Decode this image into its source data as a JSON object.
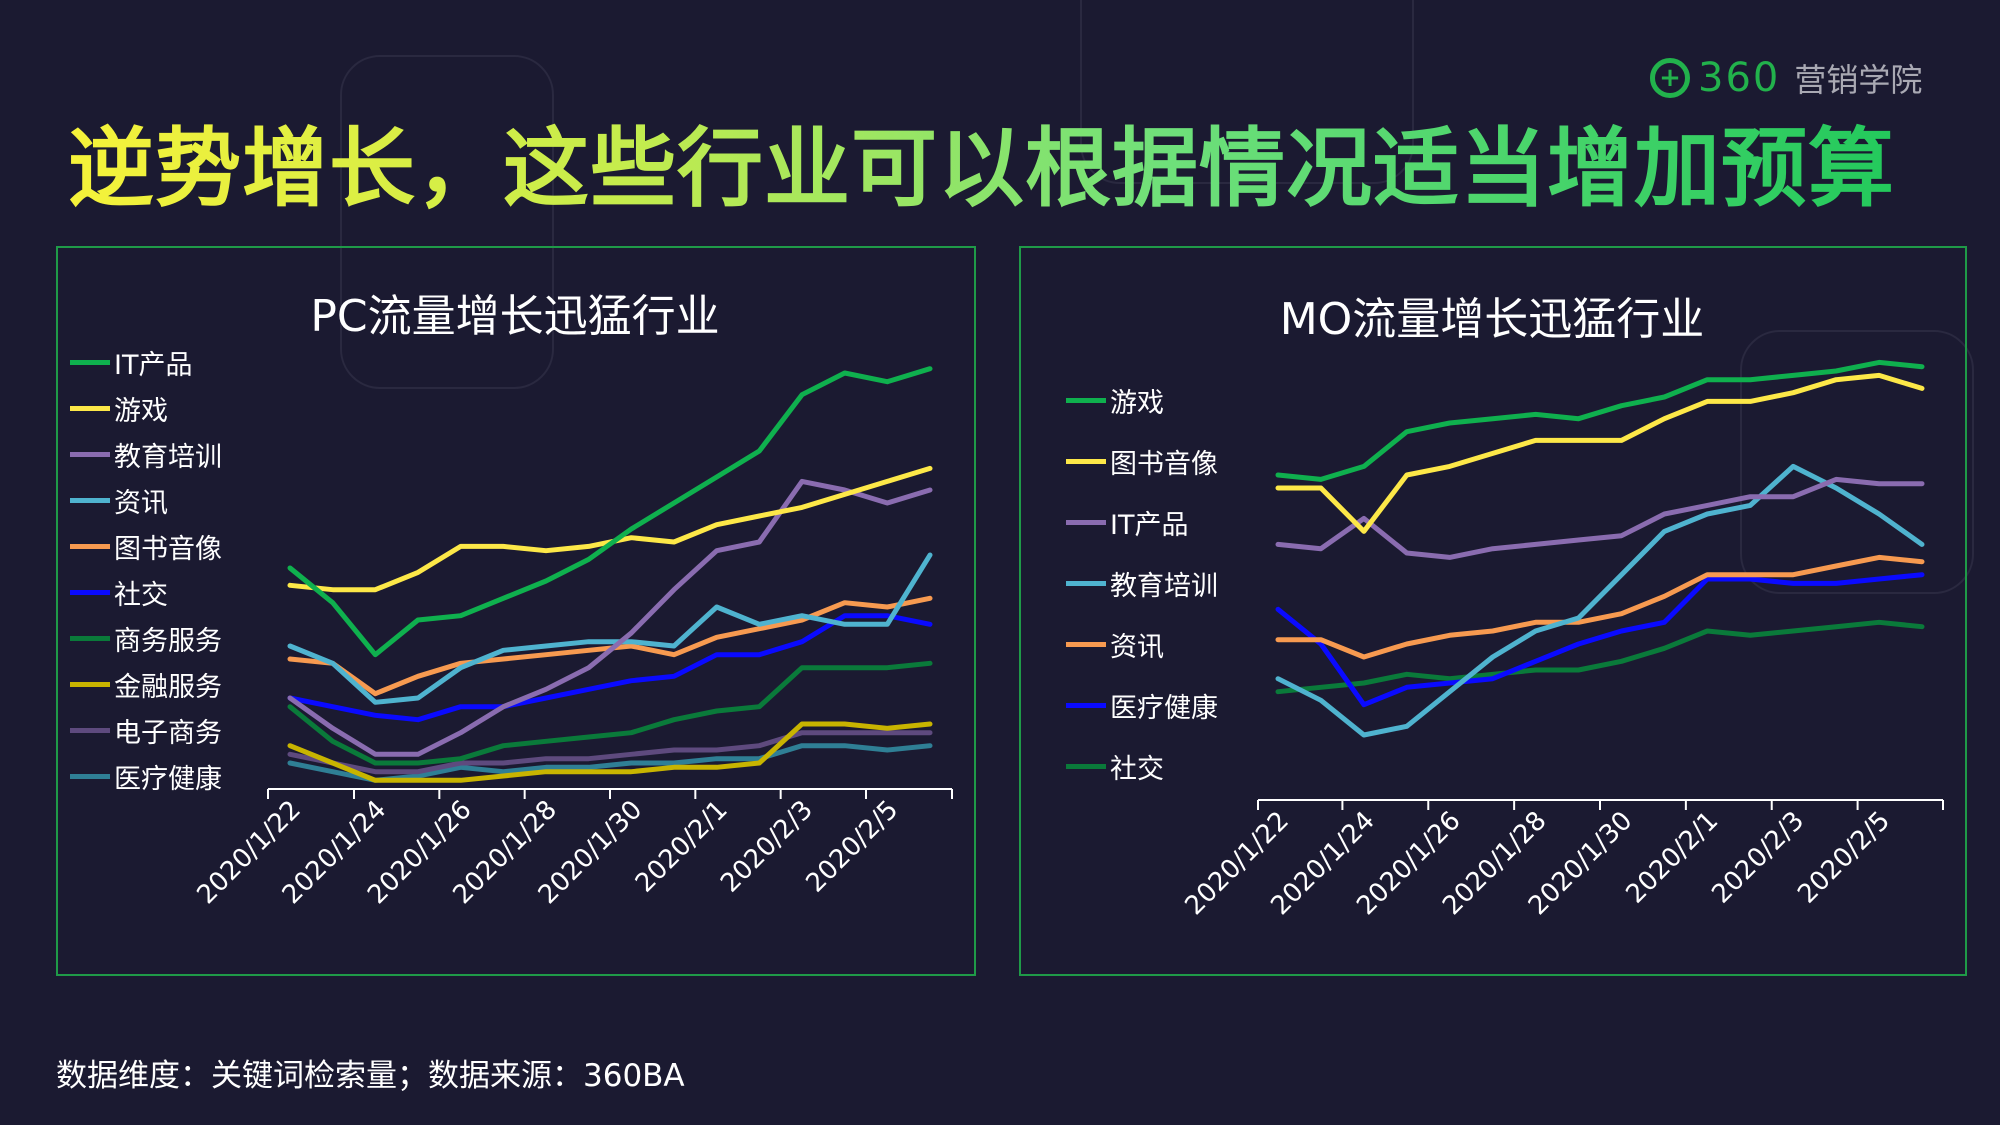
{
  "title": "逆势增长，这些行业可以根据情况适当增加预算",
  "logo": {
    "mark": "+",
    "number": "360",
    "text": "营销学院"
  },
  "footnote": "数据维度：关键词检索量；数据来源：360BA",
  "colors": {
    "background": "#1b1a31",
    "panel_border": "#1f9a48",
    "logo_green": "#22b24c"
  },
  "chart_data": [
    {
      "type": "line",
      "title": "PC流量增长迅猛行业",
      "legend_position": "left",
      "grid": false,
      "y_axis_shown": false,
      "x": [
        "2020/1/22",
        "2020/1/23",
        "2020/1/24",
        "2020/1/25",
        "2020/1/26",
        "2020/1/27",
        "2020/1/28",
        "2020/1/29",
        "2020/1/30",
        "2020/1/31",
        "2020/2/1",
        "2020/2/2",
        "2020/2/3",
        "2020/2/4",
        "2020/2/5",
        "2020/2/6"
      ],
      "x_tick_labels": [
        "2020/1/22",
        "2020/1/24",
        "2020/1/26",
        "2020/1/28",
        "2020/1/30",
        "2020/2/1",
        "2020/2/3",
        "2020/2/5"
      ],
      "series": [
        {
          "name": "IT产品",
          "color": "#0fb04e",
          "values": [
            51,
            43,
            31,
            39,
            40,
            44,
            48,
            53,
            60,
            66,
            72,
            78,
            91,
            96,
            94,
            97
          ]
        },
        {
          "name": "游戏",
          "color": "#fde848",
          "values": [
            47,
            46,
            46,
            50,
            56,
            56,
            55,
            56,
            58,
            57,
            61,
            63,
            65,
            68,
            71,
            74
          ]
        },
        {
          "name": "教育培训",
          "color": "#8a6cb0",
          "values": [
            21,
            14,
            8,
            8,
            13,
            19,
            23,
            28,
            36,
            46,
            55,
            57,
            71,
            69,
            66,
            69
          ]
        },
        {
          "name": "资讯",
          "color": "#4fb3cf",
          "values": [
            33,
            29,
            20,
            21,
            28,
            32,
            33,
            34,
            34,
            33,
            42,
            38,
            40,
            38,
            38,
            54
          ]
        },
        {
          "name": "图书音像",
          "color": "#f79a50",
          "values": [
            30,
            29,
            22,
            26,
            29,
            30,
            31,
            32,
            33,
            31,
            35,
            37,
            39,
            43,
            42,
            44
          ]
        },
        {
          "name": "社交",
          "color": "#0a0aff",
          "values": [
            21,
            19,
            17,
            16,
            19,
            19,
            21,
            23,
            25,
            26,
            31,
            31,
            34,
            40,
            40,
            38
          ]
        },
        {
          "name": "商务服务",
          "color": "#0a7a3a",
          "values": [
            19,
            11,
            6,
            6,
            7,
            10,
            11,
            12,
            13,
            16,
            18,
            19,
            28,
            28,
            28,
            29
          ]
        },
        {
          "name": "金融服务",
          "color": "#c8b400",
          "values": [
            10,
            6,
            2,
            2,
            2,
            3,
            4,
            4,
            4,
            5,
            5,
            6,
            15,
            15,
            14,
            15
          ]
        },
        {
          "name": "电子商务",
          "color": "#5e4a7e",
          "values": [
            8,
            6,
            4,
            4,
            6,
            6,
            7,
            7,
            8,
            9,
            9,
            10,
            13,
            13,
            13,
            13
          ]
        },
        {
          "name": "医疗健康",
          "color": "#2f7f95",
          "values": [
            6,
            4,
            2,
            3,
            5,
            4,
            5,
            5,
            6,
            6,
            7,
            7,
            10,
            10,
            9,
            10
          ]
        }
      ]
    },
    {
      "type": "line",
      "title": "MO流量增长迅猛行业",
      "legend_position": "left",
      "grid": false,
      "y_axis_shown": false,
      "x": [
        "2020/1/22",
        "2020/1/23",
        "2020/1/24",
        "2020/1/25",
        "2020/1/26",
        "2020/1/27",
        "2020/1/28",
        "2020/1/29",
        "2020/1/30",
        "2020/1/31",
        "2020/2/1",
        "2020/2/2",
        "2020/2/3",
        "2020/2/4",
        "2020/2/5",
        "2020/2/6"
      ],
      "x_tick_labels": [
        "2020/1/22",
        "2020/1/24",
        "2020/1/26",
        "2020/1/28",
        "2020/1/30",
        "2020/2/1",
        "2020/2/3",
        "2020/2/5"
      ],
      "series": [
        {
          "name": "游戏",
          "color": "#0fb04e",
          "values": [
            75,
            74,
            77,
            85,
            87,
            88,
            89,
            88,
            91,
            93,
            97,
            97,
            98,
            99,
            101,
            100
          ]
        },
        {
          "name": "图书音像",
          "color": "#fde848",
          "values": [
            72,
            72,
            62,
            75,
            77,
            80,
            83,
            83,
            83,
            88,
            92,
            92,
            94,
            97,
            98,
            95
          ]
        },
        {
          "name": "IT产品",
          "color": "#8a6cb0",
          "values": [
            59,
            58,
            65,
            57,
            56,
            58,
            59,
            60,
            61,
            66,
            68,
            70,
            70,
            74,
            73,
            73
          ]
        },
        {
          "name": "教育培训",
          "color": "#4fb3cf",
          "values": [
            28,
            23,
            15,
            17,
            25,
            33,
            39,
            42,
            52,
            62,
            66,
            68,
            77,
            72,
            66,
            59
          ]
        },
        {
          "name": "资讯",
          "color": "#f79a50",
          "values": [
            37,
            37,
            33,
            36,
            38,
            39,
            41,
            41,
            43,
            47,
            52,
            52,
            52,
            54,
            56,
            55
          ]
        },
        {
          "name": "医疗健康",
          "color": "#0a0aff",
          "values": [
            44,
            36,
            22,
            26,
            27,
            28,
            32,
            36,
            39,
            41,
            51,
            51,
            50,
            50,
            51,
            52
          ]
        },
        {
          "name": "社交",
          "color": "#0a7a3a",
          "values": [
            25,
            26,
            27,
            29,
            28,
            29,
            30,
            30,
            32,
            35,
            39,
            38,
            39,
            40,
            41,
            40
          ]
        }
      ]
    }
  ]
}
